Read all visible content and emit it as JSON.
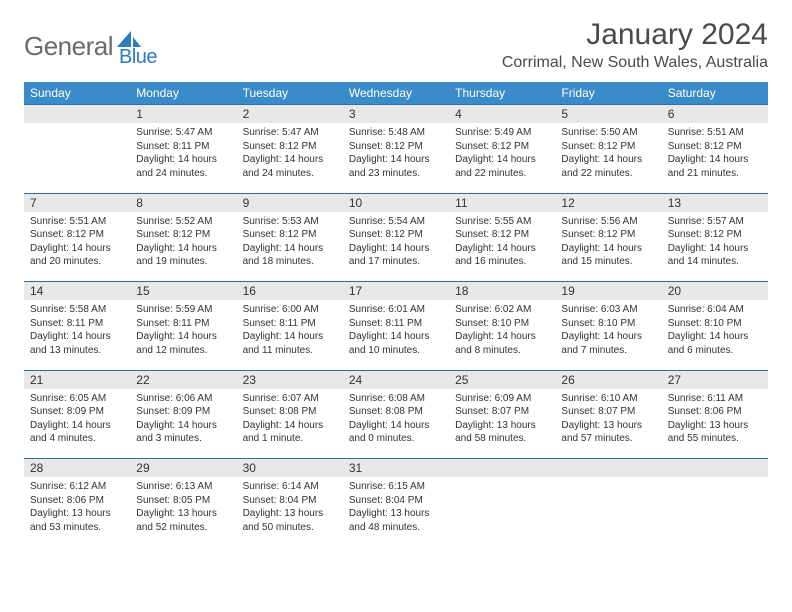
{
  "brand": {
    "text1": "General",
    "text2": "Blue"
  },
  "title": "January 2024",
  "location": "Corrimal, New South Wales, Australia",
  "theme": {
    "header_bg": "#3b8bc9",
    "daynum_bg": "#e8e8e8",
    "border": "#2b6fa3"
  },
  "weekdays": [
    "Sunday",
    "Monday",
    "Tuesday",
    "Wednesday",
    "Thursday",
    "Friday",
    "Saturday"
  ],
  "weeks": [
    {
      "nums": [
        "",
        "1",
        "2",
        "3",
        "4",
        "5",
        "6"
      ],
      "cells": [
        null,
        {
          "sun": "Sunrise: 5:47 AM",
          "set": "Sunset: 8:11 PM",
          "day": "Daylight: 14 hours and 24 minutes."
        },
        {
          "sun": "Sunrise: 5:47 AM",
          "set": "Sunset: 8:12 PM",
          "day": "Daylight: 14 hours and 24 minutes."
        },
        {
          "sun": "Sunrise: 5:48 AM",
          "set": "Sunset: 8:12 PM",
          "day": "Daylight: 14 hours and 23 minutes."
        },
        {
          "sun": "Sunrise: 5:49 AM",
          "set": "Sunset: 8:12 PM",
          "day": "Daylight: 14 hours and 22 minutes."
        },
        {
          "sun": "Sunrise: 5:50 AM",
          "set": "Sunset: 8:12 PM",
          "day": "Daylight: 14 hours and 22 minutes."
        },
        {
          "sun": "Sunrise: 5:51 AM",
          "set": "Sunset: 8:12 PM",
          "day": "Daylight: 14 hours and 21 minutes."
        }
      ]
    },
    {
      "nums": [
        "7",
        "8",
        "9",
        "10",
        "11",
        "12",
        "13"
      ],
      "cells": [
        {
          "sun": "Sunrise: 5:51 AM",
          "set": "Sunset: 8:12 PM",
          "day": "Daylight: 14 hours and 20 minutes."
        },
        {
          "sun": "Sunrise: 5:52 AM",
          "set": "Sunset: 8:12 PM",
          "day": "Daylight: 14 hours and 19 minutes."
        },
        {
          "sun": "Sunrise: 5:53 AM",
          "set": "Sunset: 8:12 PM",
          "day": "Daylight: 14 hours and 18 minutes."
        },
        {
          "sun": "Sunrise: 5:54 AM",
          "set": "Sunset: 8:12 PM",
          "day": "Daylight: 14 hours and 17 minutes."
        },
        {
          "sun": "Sunrise: 5:55 AM",
          "set": "Sunset: 8:12 PM",
          "day": "Daylight: 14 hours and 16 minutes."
        },
        {
          "sun": "Sunrise: 5:56 AM",
          "set": "Sunset: 8:12 PM",
          "day": "Daylight: 14 hours and 15 minutes."
        },
        {
          "sun": "Sunrise: 5:57 AM",
          "set": "Sunset: 8:12 PM",
          "day": "Daylight: 14 hours and 14 minutes."
        }
      ]
    },
    {
      "nums": [
        "14",
        "15",
        "16",
        "17",
        "18",
        "19",
        "20"
      ],
      "cells": [
        {
          "sun": "Sunrise: 5:58 AM",
          "set": "Sunset: 8:11 PM",
          "day": "Daylight: 14 hours and 13 minutes."
        },
        {
          "sun": "Sunrise: 5:59 AM",
          "set": "Sunset: 8:11 PM",
          "day": "Daylight: 14 hours and 12 minutes."
        },
        {
          "sun": "Sunrise: 6:00 AM",
          "set": "Sunset: 8:11 PM",
          "day": "Daylight: 14 hours and 11 minutes."
        },
        {
          "sun": "Sunrise: 6:01 AM",
          "set": "Sunset: 8:11 PM",
          "day": "Daylight: 14 hours and 10 minutes."
        },
        {
          "sun": "Sunrise: 6:02 AM",
          "set": "Sunset: 8:10 PM",
          "day": "Daylight: 14 hours and 8 minutes."
        },
        {
          "sun": "Sunrise: 6:03 AM",
          "set": "Sunset: 8:10 PM",
          "day": "Daylight: 14 hours and 7 minutes."
        },
        {
          "sun": "Sunrise: 6:04 AM",
          "set": "Sunset: 8:10 PM",
          "day": "Daylight: 14 hours and 6 minutes."
        }
      ]
    },
    {
      "nums": [
        "21",
        "22",
        "23",
        "24",
        "25",
        "26",
        "27"
      ],
      "cells": [
        {
          "sun": "Sunrise: 6:05 AM",
          "set": "Sunset: 8:09 PM",
          "day": "Daylight: 14 hours and 4 minutes."
        },
        {
          "sun": "Sunrise: 6:06 AM",
          "set": "Sunset: 8:09 PM",
          "day": "Daylight: 14 hours and 3 minutes."
        },
        {
          "sun": "Sunrise: 6:07 AM",
          "set": "Sunset: 8:08 PM",
          "day": "Daylight: 14 hours and 1 minute."
        },
        {
          "sun": "Sunrise: 6:08 AM",
          "set": "Sunset: 8:08 PM",
          "day": "Daylight: 14 hours and 0 minutes."
        },
        {
          "sun": "Sunrise: 6:09 AM",
          "set": "Sunset: 8:07 PM",
          "day": "Daylight: 13 hours and 58 minutes."
        },
        {
          "sun": "Sunrise: 6:10 AM",
          "set": "Sunset: 8:07 PM",
          "day": "Daylight: 13 hours and 57 minutes."
        },
        {
          "sun": "Sunrise: 6:11 AM",
          "set": "Sunset: 8:06 PM",
          "day": "Daylight: 13 hours and 55 minutes."
        }
      ]
    },
    {
      "nums": [
        "28",
        "29",
        "30",
        "31",
        "",
        "",
        ""
      ],
      "cells": [
        {
          "sun": "Sunrise: 6:12 AM",
          "set": "Sunset: 8:06 PM",
          "day": "Daylight: 13 hours and 53 minutes."
        },
        {
          "sun": "Sunrise: 6:13 AM",
          "set": "Sunset: 8:05 PM",
          "day": "Daylight: 13 hours and 52 minutes."
        },
        {
          "sun": "Sunrise: 6:14 AM",
          "set": "Sunset: 8:04 PM",
          "day": "Daylight: 13 hours and 50 minutes."
        },
        {
          "sun": "Sunrise: 6:15 AM",
          "set": "Sunset: 8:04 PM",
          "day": "Daylight: 13 hours and 48 minutes."
        },
        null,
        null,
        null
      ]
    }
  ]
}
